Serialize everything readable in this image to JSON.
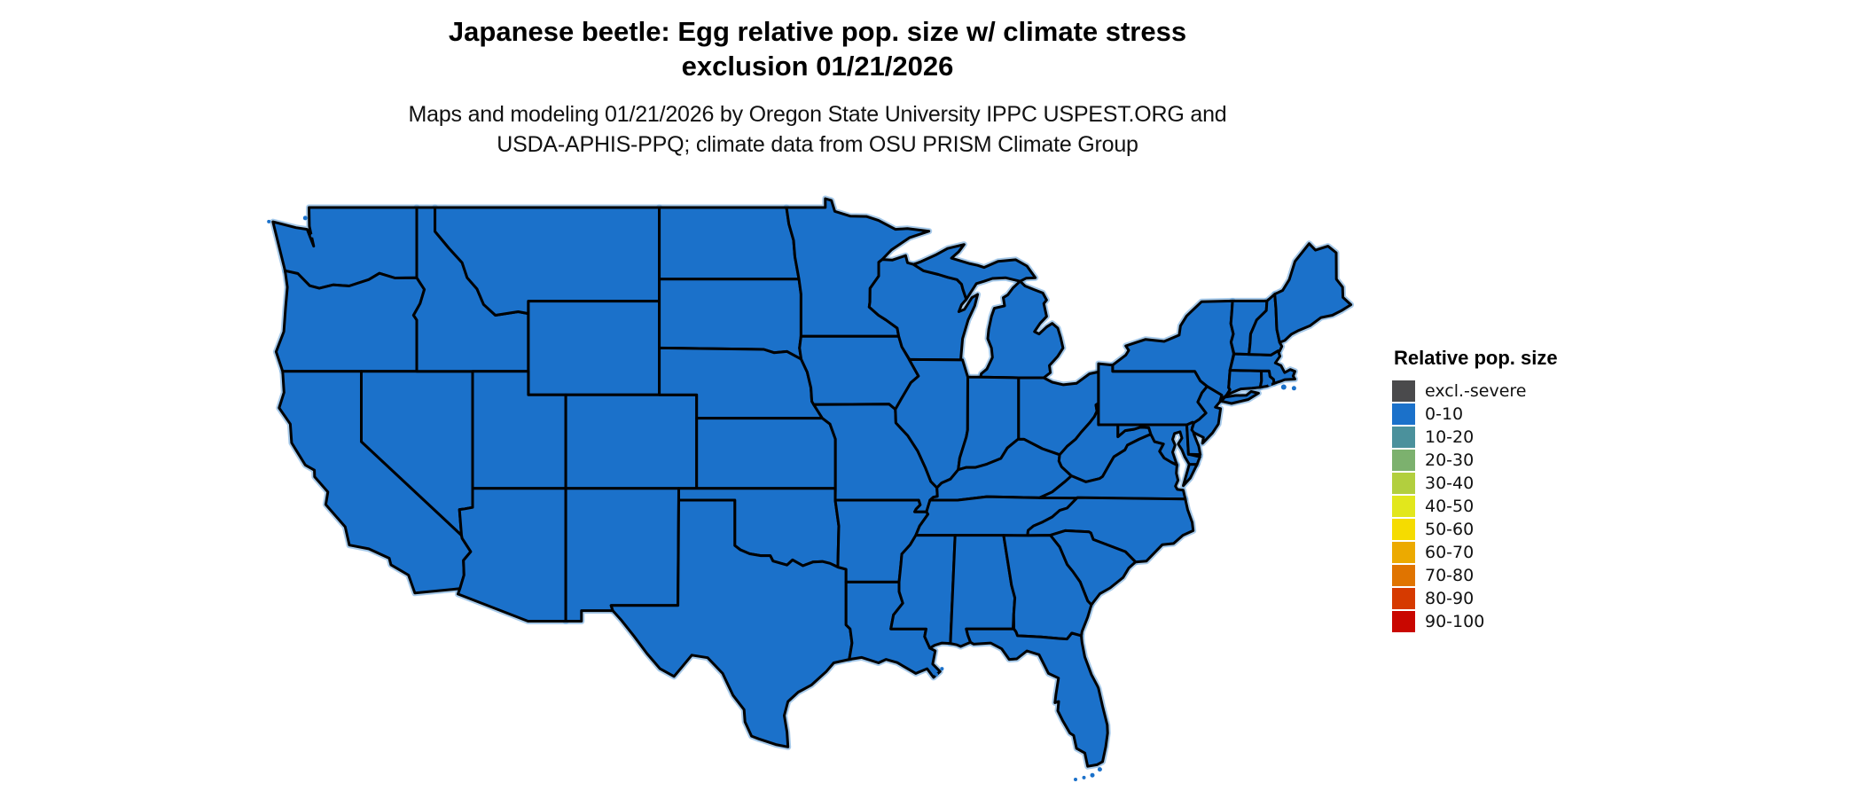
{
  "figure": {
    "title_line1": "Japanese beetle: Egg relative pop. size w/ climate stress",
    "title_line2": "exclusion 01/21/2026",
    "subtitle_line1": "Maps and modeling 01/21/2026 by Oregon State University IPPC USPEST.ORG and",
    "subtitle_line2": "USDA-APHIS-PPQ; climate data from OSU PRISM Climate Group"
  },
  "legend": {
    "title": "Relative pop. size",
    "entries": [
      {
        "label": "excl.-severe",
        "color": "#4a4a4c"
      },
      {
        "label": "0-10",
        "color": "#1b71ca"
      },
      {
        "label": "10-20",
        "color": "#4b919c"
      },
      {
        "label": "20-30",
        "color": "#7cb16e"
      },
      {
        "label": "30-40",
        "color": "#b2cf3e"
      },
      {
        "label": "40-50",
        "color": "#e2e71c"
      },
      {
        "label": "50-60",
        "color": "#f5dc00"
      },
      {
        "label": "60-70",
        "color": "#ecaa00"
      },
      {
        "label": "70-80",
        "color": "#e07400"
      },
      {
        "label": "80-90",
        "color": "#d63a00"
      },
      {
        "label": "90-100",
        "color": "#c90700"
      }
    ]
  },
  "map_data": {
    "type": "choropleth",
    "region": "Contiguous United States",
    "variable": "Relative pop. size",
    "life_stage": "Egg",
    "species": "Japanese beetle",
    "date": "01/21/2026",
    "uniform_class": "0-10",
    "note": "All 48 contiguous states are rendered in the 0-10 class (blue); no areas shown in any other class",
    "fill_color": "#1b71ca",
    "coast_fringe_color": "#5f9fd8",
    "border_color": "#000000",
    "background": "#ffffff"
  }
}
